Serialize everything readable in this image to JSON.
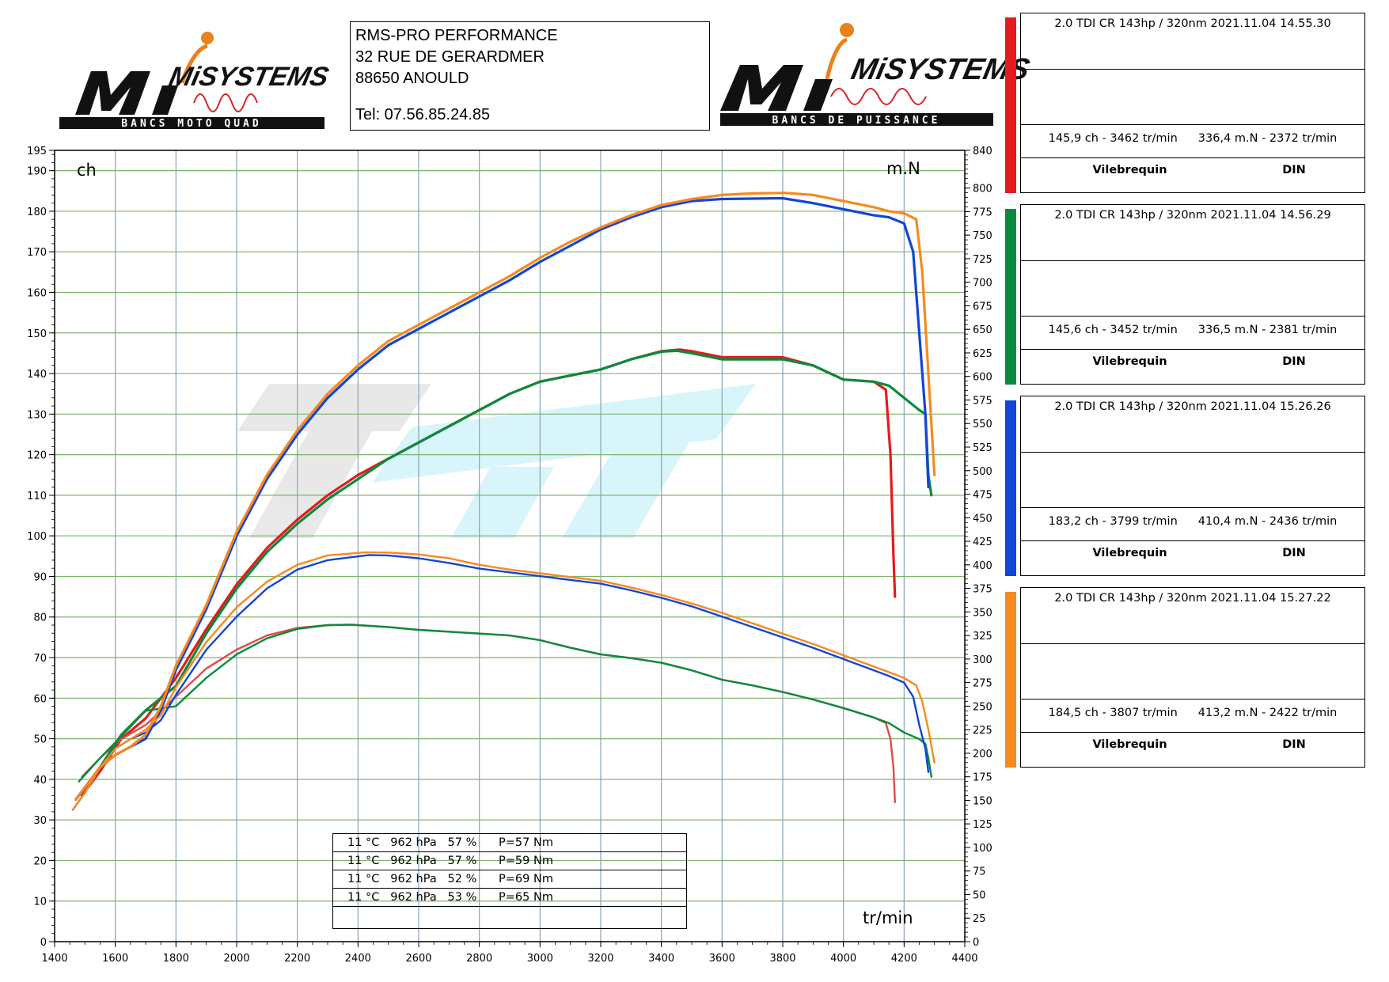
{
  "header": {
    "logo_left": {
      "brand": "MiSYSTEMS",
      "tagline": "BANCS MOTO QUAD"
    },
    "logo_right": {
      "brand": "MiSYSTEMS",
      "tagline": "BANCS DE PUISSANCE"
    },
    "address": {
      "line1": "RMS-PRO PERFORMANCE",
      "line2": "32 RUE DE GERARDMER",
      "line3": "88650 ANOULD",
      "phone": "Tel: 07.56.85.24.85"
    }
  },
  "runs": [
    {
      "color": "#e41a1c",
      "caption": "2.0 TDI CR 143hp / 320nm   2021.11.04 14.55.30",
      "power_summary": "145,9 ch - 3462 tr/min",
      "torque_summary": "336,4 m.N - 2372 tr/min",
      "label_left": "Vilebrequin",
      "label_right": "DIN"
    },
    {
      "color": "#0b8a3e",
      "caption": "2.0 TDI CR 143hp / 320nm   2021.11.04 14.56.29",
      "power_summary": "145,6 ch - 3452 tr/min",
      "torque_summary": "336,5 m.N - 2381 tr/min",
      "label_left": "Vilebrequin",
      "label_right": "DIN"
    },
    {
      "color": "#1245d8",
      "caption": "2.0 TDI CR 143hp / 320nm   2021.11.04 15.26.26",
      "power_summary": "183,2 ch - 3799 tr/min",
      "torque_summary": "410,4 m.N - 2436 tr/min",
      "label_left": "Vilebrequin",
      "label_right": "DIN"
    },
    {
      "color": "#f58a1f",
      "caption": "2.0 TDI CR 143hp / 320nm   2021.11.04 15.27.22",
      "power_summary": "184,5 ch - 3807 tr/min",
      "torque_summary": "413,2 m.N - 2422 tr/min",
      "label_left": "Vilebrequin",
      "label_right": "DIN"
    }
  ],
  "conditions": [
    "11 °C   962 hPa   57 %      P=57 Nm",
    "11 °C   962 hPa   57 %      P=59 Nm",
    "11 °C   962 hPa   52 %      P=69 Nm",
    "11 °C   962 hPa   53 %      P=65 Nm"
  ],
  "chart_data": {
    "type": "line",
    "title": "",
    "xlabel": "tr/min",
    "ylabel_left": "ch",
    "ylabel_right": "m.N",
    "xlim": [
      1400,
      4400
    ],
    "ylim_left": [
      0,
      195
    ],
    "ylim_right": [
      0,
      840
    ],
    "grid": true,
    "x_ticks": [
      1400,
      1600,
      1800,
      2000,
      2200,
      2400,
      2600,
      2800,
      3000,
      3200,
      3400,
      3600,
      3800,
      4000,
      4200,
      4400
    ],
    "y_left_ticks": [
      0,
      10,
      20,
      30,
      40,
      50,
      60,
      70,
      80,
      90,
      100,
      110,
      120,
      130,
      140,
      150,
      160,
      170,
      180,
      190,
      195
    ],
    "y_right_ticks": [
      0,
      25,
      50,
      75,
      100,
      125,
      150,
      175,
      200,
      225,
      250,
      275,
      300,
      325,
      350,
      375,
      400,
      425,
      450,
      475,
      500,
      525,
      550,
      575,
      600,
      625,
      650,
      675,
      700,
      725,
      750,
      775,
      800,
      840
    ],
    "series": [
      {
        "name": "2.0 TDI CR 143hp / 320nm 2021.11.04 14.55.30",
        "kind": "power",
        "axis": "left",
        "color": "#e41a1c",
        "x": [
          1490,
          1550,
          1620,
          1700,
          1800,
          1900,
          2000,
          2100,
          2200,
          2300,
          2400,
          2500,
          2600,
          2700,
          2800,
          2900,
          3000,
          3100,
          3200,
          3300,
          3400,
          3460,
          3500,
          3600,
          3700,
          3800,
          3900,
          4000,
          4100,
          4140,
          4155,
          4165,
          4170
        ],
        "y": [
          36,
          42,
          50,
          55,
          65,
          77,
          88,
          97,
          104,
          110,
          115,
          119,
          123,
          127,
          131,
          135,
          138,
          139.5,
          141,
          143.5,
          145.5,
          145.9,
          145.5,
          144,
          144,
          144,
          142,
          138.5,
          138,
          136,
          120,
          95,
          85
        ]
      },
      {
        "name": "2.0 TDI CR 143hp / 320nm 2021.11.04 14.55.30",
        "kind": "torque",
        "axis": "right",
        "color": "#e04a4a",
        "x": [
          1490,
          1550,
          1620,
          1700,
          1800,
          1900,
          2000,
          2100,
          2200,
          2300,
          2372,
          2500,
          2600,
          2700,
          2800,
          2900,
          3000,
          3100,
          3200,
          3300,
          3400,
          3500,
          3600,
          3700,
          3800,
          3900,
          4000,
          4100,
          4140,
          4155,
          4165,
          4170
        ],
        "y": [
          175,
          195,
          215,
          230,
          260,
          290,
          310,
          325,
          333,
          336,
          336.4,
          334,
          331,
          329,
          327,
          325,
          320,
          312,
          305,
          301,
          296,
          288,
          278,
          272,
          265,
          257,
          248,
          238,
          232,
          215,
          185,
          148
        ]
      },
      {
        "name": "2.0 TDI CR 143hp / 320nm 2021.11.04 14.56.29",
        "kind": "power",
        "axis": "left",
        "color": "#0b8a3e",
        "x": [
          1480,
          1550,
          1620,
          1700,
          1800,
          1900,
          2000,
          2100,
          2200,
          2300,
          2400,
          2500,
          2600,
          2700,
          2800,
          2900,
          3000,
          3100,
          3200,
          3300,
          3400,
          3452,
          3500,
          3600,
          3700,
          3800,
          3900,
          4000,
          4100,
          4150,
          4200,
          4250,
          4270,
          4280,
          4290
        ],
        "y": [
          36,
          43,
          51,
          57,
          63,
          76,
          87,
          96,
          103,
          109,
          114,
          119,
          123,
          127,
          131,
          135,
          138,
          139.5,
          141,
          143.5,
          145.4,
          145.6,
          145,
          143.5,
          143.5,
          143.5,
          142,
          138.5,
          138,
          137,
          134,
          131,
          130,
          115,
          110
        ]
      },
      {
        "name": "2.0 TDI CR 143hp / 320nm 2021.11.04 14.56.29",
        "kind": "torque",
        "axis": "right",
        "color": "#0b8a3e",
        "x": [
          1480,
          1550,
          1620,
          1700,
          1800,
          1900,
          2000,
          2100,
          2200,
          2300,
          2381,
          2500,
          2600,
          2700,
          2800,
          2900,
          3000,
          3100,
          3200,
          3300,
          3400,
          3500,
          3600,
          3700,
          3800,
          3900,
          4000,
          4100,
          4150,
          4200,
          4250,
          4270,
          4280,
          4290
        ],
        "y": [
          170,
          195,
          218,
          245,
          250,
          280,
          305,
          322,
          332,
          336,
          336.5,
          334,
          331,
          329,
          327,
          325,
          320,
          312,
          305,
          301,
          296,
          288,
          278,
          272,
          265,
          257,
          248,
          238,
          232,
          222,
          215,
          210,
          195,
          175
        ]
      },
      {
        "name": "2.0 TDI CR 143hp / 320nm 2021.11.04 15.26.26",
        "kind": "power",
        "axis": "left",
        "color": "#1245d8",
        "x": [
          1470,
          1500,
          1550,
          1600,
          1650,
          1700,
          1750,
          1800,
          1900,
          2000,
          2100,
          2200,
          2300,
          2400,
          2500,
          2600,
          2700,
          2800,
          2900,
          3000,
          3100,
          3200,
          3300,
          3400,
          3500,
          3600,
          3700,
          3799,
          3900,
          4000,
          4100,
          4150,
          4200,
          4230,
          4250,
          4270,
          4280
        ],
        "y": [
          35,
          38,
          43,
          46,
          48,
          50,
          57,
          67,
          82,
          100,
          114,
          125,
          134,
          141,
          147,
          151,
          155,
          159,
          163,
          167.5,
          171.5,
          175.5,
          178.5,
          181,
          182.5,
          183,
          183.1,
          183.2,
          182,
          180.5,
          179,
          178.5,
          177,
          170,
          150,
          130,
          112
        ]
      },
      {
        "name": "2.0 TDI CR 143hp / 320nm 2021.11.04 15.26.26",
        "kind": "torque",
        "axis": "right",
        "color": "#1245d8",
        "x": [
          1460,
          1500,
          1550,
          1600,
          1650,
          1700,
          1750,
          1800,
          1900,
          2000,
          2100,
          2200,
          2300,
          2436,
          2500,
          2600,
          2700,
          2800,
          2900,
          3000,
          3100,
          3200,
          3300,
          3400,
          3500,
          3600,
          3700,
          3800,
          3900,
          4000,
          4100,
          4150,
          4200,
          4230,
          4250,
          4270,
          4280
        ],
        "y": [
          140,
          158,
          185,
          205,
          215,
          222,
          235,
          262,
          310,
          345,
          375,
          395,
          405,
          410.4,
          410,
          407,
          402,
          396,
          392,
          388,
          384,
          380,
          373,
          365,
          356,
          345,
          334,
          323,
          312,
          300,
          288,
          282,
          275,
          260,
          230,
          205,
          180
        ]
      },
      {
        "name": "2.0 TDI CR 143hp / 320nm 2021.11.04 15.27.22",
        "kind": "power",
        "axis": "left",
        "color": "#f58a1f",
        "x": [
          1470,
          1500,
          1550,
          1600,
          1650,
          1700,
          1750,
          1800,
          1900,
          2000,
          2100,
          2200,
          2300,
          2400,
          2500,
          2600,
          2700,
          2800,
          2900,
          3000,
          3100,
          3200,
          3300,
          3400,
          3500,
          3600,
          3700,
          3807,
          3900,
          4000,
          4100,
          4150,
          4200,
          4240,
          4260,
          4280,
          4300
        ],
        "y": [
          35,
          38,
          43,
          46,
          48,
          51,
          58,
          68,
          83,
          101,
          115,
          126,
          135,
          142,
          148,
          152,
          156,
          160,
          164,
          168.5,
          172.5,
          176,
          179,
          181.5,
          183,
          184,
          184.4,
          184.5,
          184,
          182.5,
          181,
          180,
          179.5,
          178,
          165,
          140,
          115
        ]
      },
      {
        "name": "2.0 TDI CR 143hp / 320nm 2021.11.04 15.27.22",
        "kind": "torque",
        "axis": "right",
        "color": "#f58a1f",
        "x": [
          1460,
          1500,
          1550,
          1600,
          1650,
          1700,
          1750,
          1800,
          1900,
          2000,
          2100,
          2200,
          2300,
          2422,
          2500,
          2600,
          2700,
          2800,
          2900,
          3000,
          3100,
          3200,
          3300,
          3400,
          3500,
          3600,
          3700,
          3800,
          3900,
          4000,
          4100,
          4150,
          4200,
          4240,
          4260,
          4280,
          4300
        ],
        "y": [
          140,
          158,
          185,
          205,
          215,
          225,
          240,
          270,
          318,
          355,
          382,
          400,
          410,
          413.2,
          413,
          411,
          407,
          400,
          395,
          391,
          387,
          383,
          376,
          368,
          359,
          349,
          338,
          327,
          316,
          304,
          292,
          286,
          280,
          272,
          255,
          225,
          190
        ]
      }
    ]
  }
}
